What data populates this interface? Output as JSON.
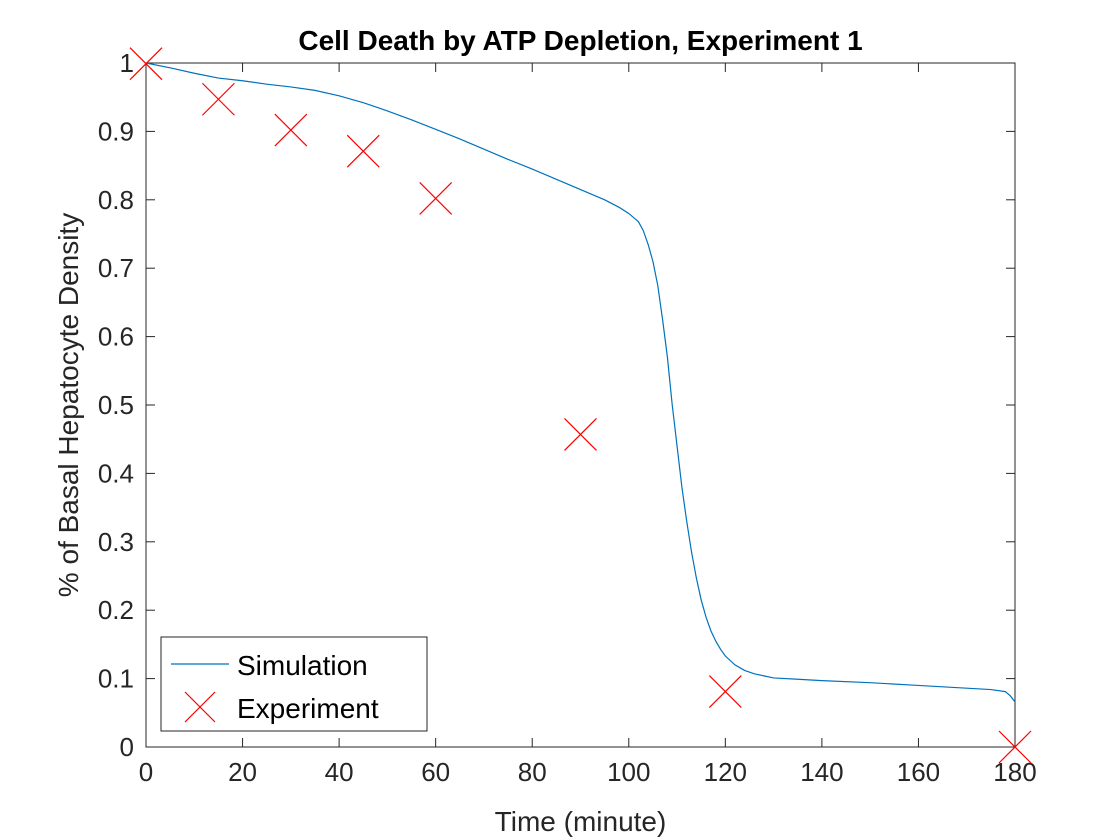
{
  "chart_data": {
    "type": "line",
    "title": "Cell Death by ATP Depletion, Experiment 1",
    "xlabel": "Time (minute)",
    "ylabel": "% of Basal Hepatocyte Density",
    "xlim": [
      0,
      180
    ],
    "ylim": [
      0,
      1
    ],
    "xticks": [
      0,
      20,
      40,
      60,
      80,
      100,
      120,
      140,
      160,
      180
    ],
    "yticks": [
      0,
      0.1,
      0.2,
      0.3,
      0.4,
      0.5,
      0.6,
      0.7,
      0.8,
      0.9,
      1
    ],
    "ytick_labels": [
      "0",
      "0.1",
      "0.2",
      "0.3",
      "0.4",
      "0.5",
      "0.6",
      "0.7",
      "0.8",
      "0.9",
      "1"
    ],
    "grid": false,
    "legend_position": "bottom-left",
    "series": [
      {
        "name": "Simulation",
        "kind": "line",
        "color": "#0072BD",
        "x": [
          0,
          5,
          10,
          15,
          20,
          25,
          30,
          35,
          40,
          45,
          50,
          55,
          60,
          65,
          70,
          75,
          80,
          85,
          90,
          95,
          98,
          100,
          102,
          103,
          104,
          105,
          106,
          107,
          108,
          109,
          110,
          111,
          112,
          113,
          114,
          115,
          116,
          117,
          118,
          119,
          120,
          122,
          124,
          126,
          128,
          130,
          135,
          140,
          150,
          160,
          170,
          175,
          178,
          179,
          180
        ],
        "y": [
          1.0,
          0.993,
          0.985,
          0.978,
          0.974,
          0.969,
          0.965,
          0.96,
          0.952,
          0.942,
          0.93,
          0.917,
          0.903,
          0.889,
          0.874,
          0.859,
          0.845,
          0.83,
          0.815,
          0.8,
          0.789,
          0.78,
          0.768,
          0.755,
          0.735,
          0.71,
          0.675,
          0.625,
          0.57,
          0.5,
          0.44,
          0.38,
          0.33,
          0.285,
          0.247,
          0.215,
          0.19,
          0.17,
          0.155,
          0.143,
          0.133,
          0.12,
          0.112,
          0.107,
          0.104,
          0.101,
          0.099,
          0.097,
          0.094,
          0.09,
          0.086,
          0.084,
          0.081,
          0.075,
          0.066
        ]
      },
      {
        "name": "Experiment",
        "kind": "marker",
        "marker": "x",
        "color": "#FF0000",
        "x": [
          0,
          15,
          30,
          45,
          60,
          90,
          120,
          180
        ],
        "y": [
          0.999,
          0.947,
          0.902,
          0.871,
          0.802,
          0.457,
          0.081,
          0.0
        ]
      }
    ]
  }
}
